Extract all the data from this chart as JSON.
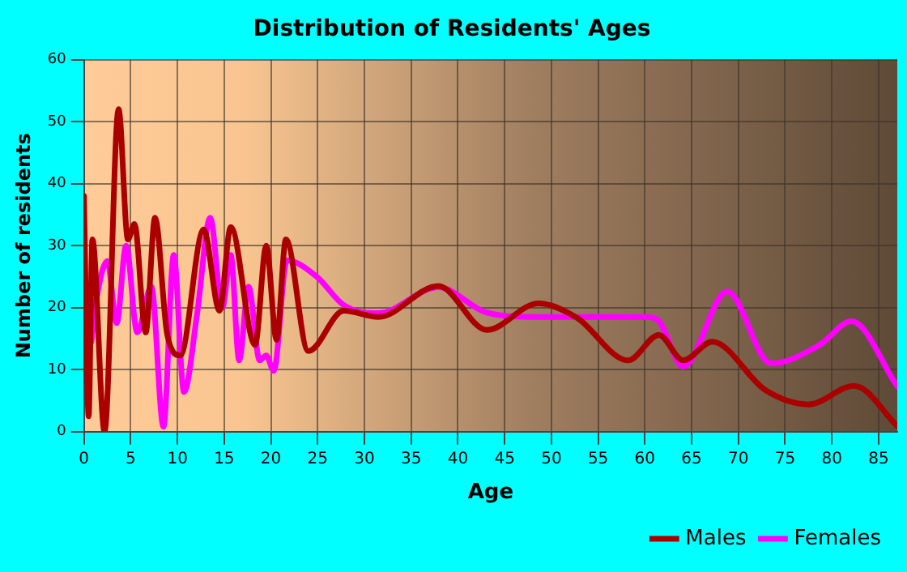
{
  "chart_data": {
    "type": "line",
    "title": "Distribution of Residents' Ages",
    "xlabel": "Age",
    "ylabel": "Number of residents",
    "xlim": [
      0,
      87
    ],
    "xticks": [
      0,
      5,
      10,
      15,
      20,
      25,
      30,
      35,
      40,
      45,
      50,
      55,
      60,
      65,
      70,
      75,
      80,
      85
    ],
    "ylim": [
      0,
      60
    ],
    "yticks": [
      0,
      10,
      20,
      30,
      40,
      50,
      60
    ],
    "grid": true,
    "legend": "bottom right",
    "marker": "none",
    "line_style": "solid",
    "series": [
      {
        "name": "Males",
        "color": "#aa0000",
        "x": [
          0,
          0.5,
          0.9,
          2.2,
          3.7,
          4.7,
          5.4,
          6.6,
          7.6,
          8.9,
          10.3,
          12.8,
          14.5,
          15.7,
          18.3,
          19.5,
          20.6,
          21.6,
          24,
          27.8,
          31.5,
          37.9,
          43.1,
          48.6,
          52.7,
          58.2,
          61.5,
          64.1,
          67.2,
          72.9,
          77.5,
          82.4,
          87
        ],
        "values": [
          38,
          2.5,
          31,
          0,
          52,
          31,
          33.5,
          16,
          34.5,
          15.7,
          12.3,
          32.6,
          19.5,
          33,
          14,
          30,
          14.8,
          31,
          13,
          19.5,
          18.5,
          23.5,
          16.4,
          20.7,
          18.4,
          11.5,
          15.6,
          11.5,
          14.5,
          6.7,
          4.4,
          7.4,
          0.9
        ]
      },
      {
        "name": "Females",
        "color": "#ff00ff",
        "x": [
          0.8,
          1.3,
          2.5,
          3.5,
          4.5,
          5.7,
          7.2,
          8.5,
          9.6,
          10.7,
          12.1,
          13.5,
          14.8,
          15.7,
          16.6,
          17.6,
          18.8,
          19.5,
          20.3,
          21.7,
          24.9,
          27.8,
          31.5,
          37.9,
          43.1,
          48.6,
          60.2,
          61.4,
          64.1,
          68.8,
          73.5,
          78.7,
          82.1,
          87
        ],
        "values": [
          14.5,
          21,
          27.5,
          17.5,
          30,
          16,
          23.4,
          0.8,
          28.5,
          6.4,
          19,
          34.5,
          20,
          28.5,
          11.5,
          23.4,
          11.5,
          12.3,
          9.8,
          27.6,
          25,
          20.4,
          19.1,
          23.3,
          19.2,
          18.5,
          18.5,
          18,
          10.5,
          22.6,
          11,
          14,
          17.8,
          7.3
        ]
      }
    ]
  }
}
